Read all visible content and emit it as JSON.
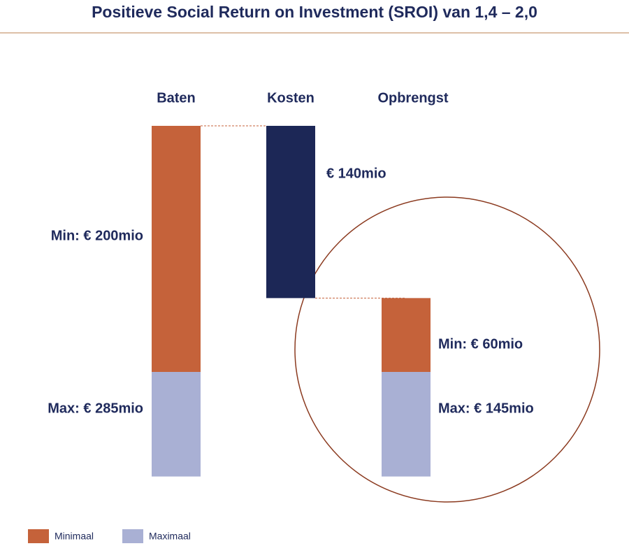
{
  "chart_data": {
    "type": "waterfall",
    "title": "Positieve Social Return on Investment (SROI) van 1,4 – 2,0",
    "categories": [
      "Baten",
      "Kosten",
      "Opbrengst"
    ],
    "series": [
      {
        "name": "Maximaal",
        "color": "#a9b0d4",
        "values": [
          285,
          null,
          145
        ],
        "value_labels": [
          "Max: € 285mio",
          null,
          "Max: € 145mio"
        ]
      },
      {
        "name": "Minimaal",
        "color": "#c5623a",
        "values": [
          200,
          null,
          60
        ],
        "value_labels": [
          "Min: € 200mio",
          null,
          "Min: € 60mio"
        ]
      }
    ],
    "costs": {
      "value": 140,
      "value_label": "€ 140mio",
      "color": "#1c2756"
    }
  }
}
